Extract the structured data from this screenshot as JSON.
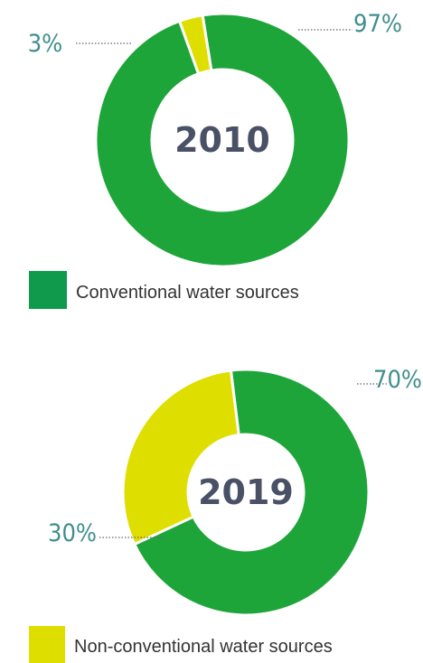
{
  "chart_data": [
    {
      "type": "pie",
      "center_label": "2010",
      "values": [
        97,
        3
      ],
      "value_labels": [
        "97%",
        "3%"
      ],
      "colors": [
        "#1ea539",
        "#dede00"
      ],
      "legend": {
        "name": "Conventional water sources",
        "color": "#0f9a4c"
      }
    },
    {
      "type": "pie",
      "center_label": "2019",
      "values": [
        70,
        30
      ],
      "value_labels": [
        "70%",
        "30%"
      ],
      "colors": [
        "#1ea539",
        "#dede00"
      ],
      "legend": {
        "name": "Non-conventional water sources",
        "color": "#dede00"
      }
    }
  ]
}
